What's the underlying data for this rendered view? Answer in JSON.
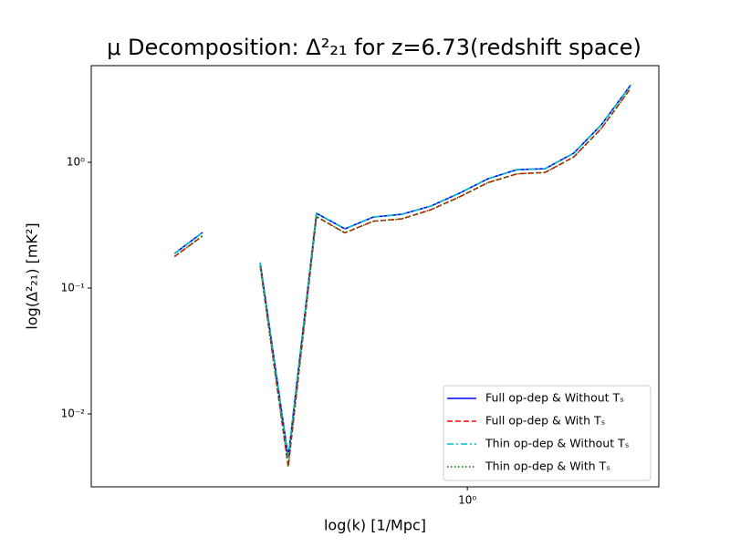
{
  "chart_data": {
    "type": "line",
    "title": "μ Decomposition: Δ²₂₁ for z=6.73(redshift space)",
    "xlabel": "log(k) [1/Mpc]",
    "ylabel": "log(Δ²₂₁) [mK²]",
    "x": [
      0.178,
      0.21,
      0.25,
      0.295,
      0.348,
      0.411,
      0.486,
      0.574,
      0.679,
      0.807,
      0.953,
      1.13,
      1.34,
      1.58,
      1.87,
      2.2,
      2.62
    ],
    "series": [
      {
        "name": "Full op-dep & Without Tₛ",
        "color": "#0000ff",
        "dash": "solid",
        "values": [
          0.188,
          0.277,
          null,
          0.16,
          0.0045,
          0.393,
          0.296,
          0.367,
          0.386,
          0.449,
          0.567,
          0.741,
          0.875,
          0.889,
          1.18,
          1.98,
          4.13
        ]
      },
      {
        "name": "Full op-dep & With Tₛ",
        "color": "#ff0000",
        "dash": "dashed",
        "values": [
          0.178,
          0.26,
          null,
          0.15,
          0.0038,
          0.37,
          0.275,
          0.34,
          0.355,
          0.42,
          0.53,
          0.69,
          0.81,
          0.83,
          1.1,
          1.85,
          3.9
        ]
      },
      {
        "name": "Thin op-dep & Without Tₛ",
        "color": "#00bfbf",
        "dash": "dashdot",
        "values": [
          0.188,
          0.277,
          null,
          0.16,
          0.0045,
          0.393,
          0.296,
          0.367,
          0.386,
          0.449,
          0.567,
          0.741,
          0.875,
          0.889,
          1.18,
          1.98,
          4.13
        ]
      },
      {
        "name": "Thin op-dep & With Tₛ",
        "color": "#008000",
        "dash": "dotted",
        "values": [
          0.178,
          0.26,
          null,
          0.15,
          0.0038,
          0.37,
          0.275,
          0.34,
          0.355,
          0.42,
          0.53,
          0.69,
          0.81,
          0.83,
          1.1,
          1.85,
          3.9
        ]
      }
    ],
    "xscale": "log",
    "yscale": "log",
    "xlim": [
      0.109,
      3.09
    ],
    "ylim": [
      0.00263,
      5.87
    ],
    "xticks": [
      {
        "value": 1,
        "label": "10⁰"
      }
    ],
    "yticks": [
      {
        "value": 0.01,
        "label": "10⁻²"
      },
      {
        "value": 0.1,
        "label": "10⁻¹"
      },
      {
        "value": 1,
        "label": "10⁰"
      }
    ],
    "legend": "lower right"
  }
}
